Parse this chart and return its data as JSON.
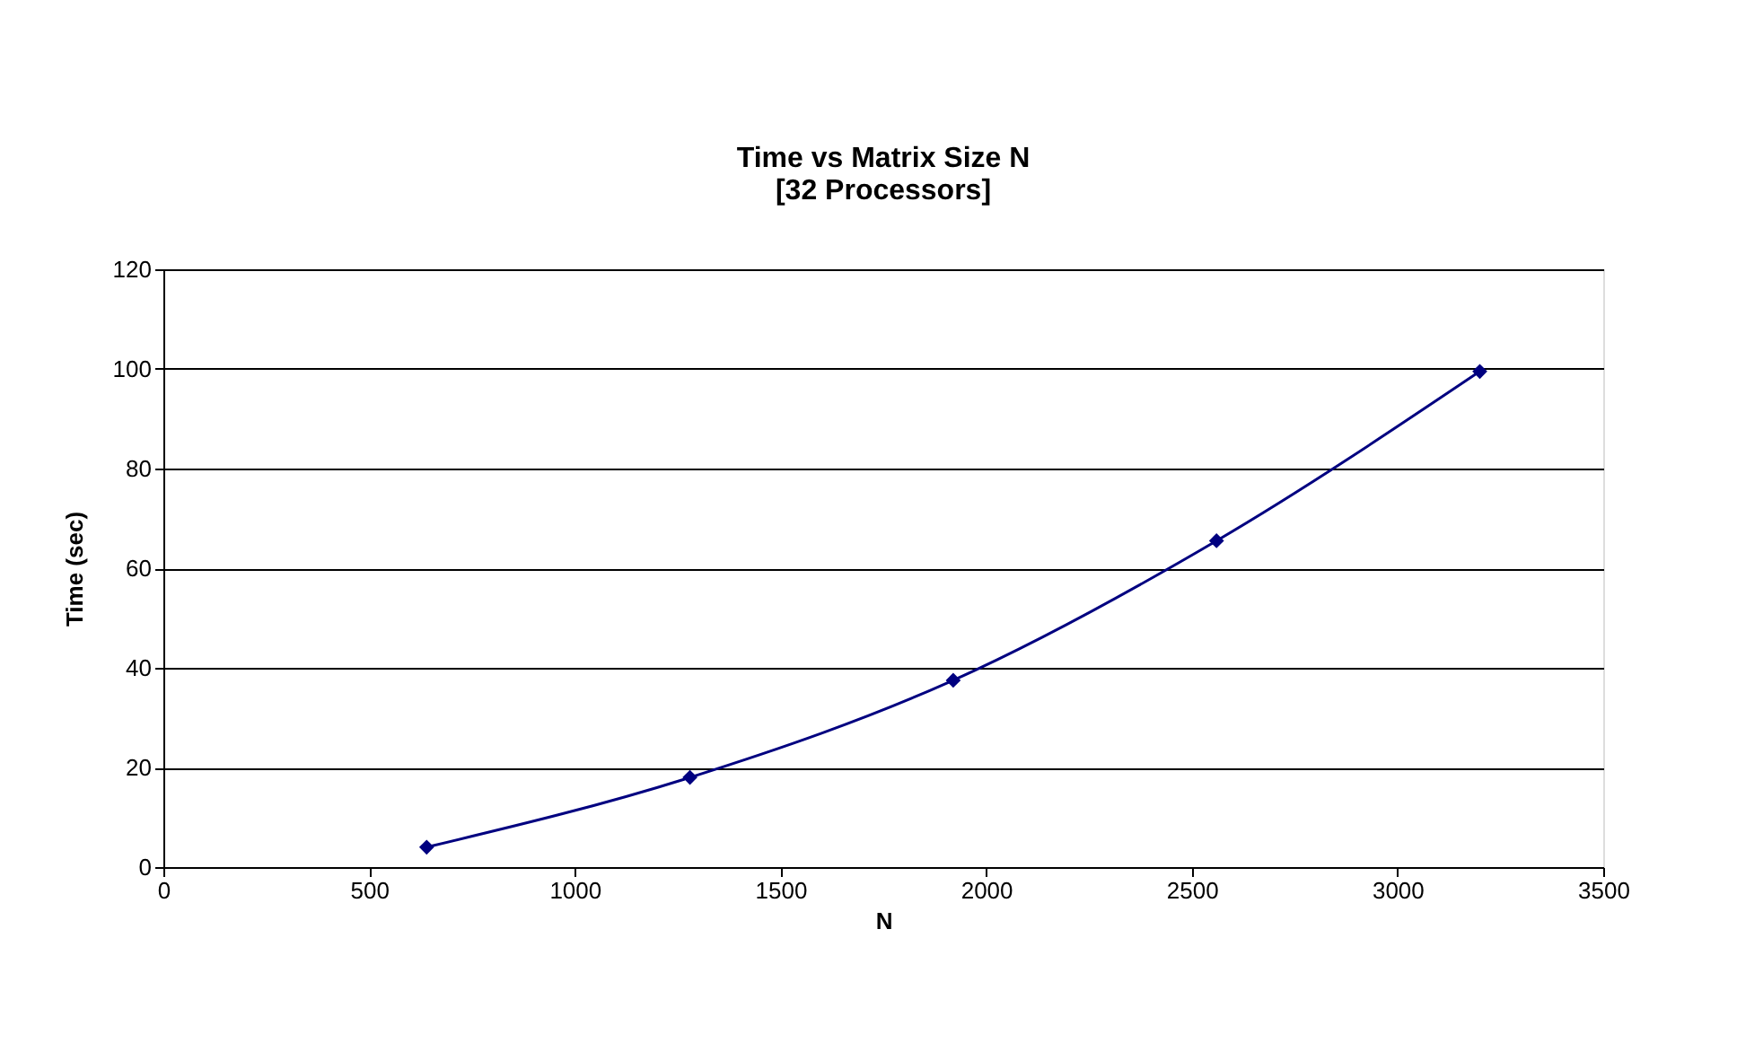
{
  "chart_data": {
    "type": "line",
    "title": [
      "Time vs Matrix Size N",
      "[32 Processors]"
    ],
    "xlabel": "N",
    "ylabel": "Time (sec)",
    "x": [
      640,
      1280,
      1920,
      2560,
      3200
    ],
    "series": [
      {
        "color": "#000080",
        "values": [
          4,
          18,
          37.5,
          65.5,
          99.5
        ]
      }
    ],
    "xlim": [
      0,
      3500
    ],
    "xticks": [
      0,
      500,
      1000,
      1500,
      2000,
      2500,
      3000,
      3500
    ],
    "ylim": [
      0,
      120
    ],
    "yticks": [
      0,
      20,
      40,
      60,
      80,
      100,
      120
    ],
    "grid": "y",
    "marker": "diamond",
    "line_style": "solid"
  }
}
